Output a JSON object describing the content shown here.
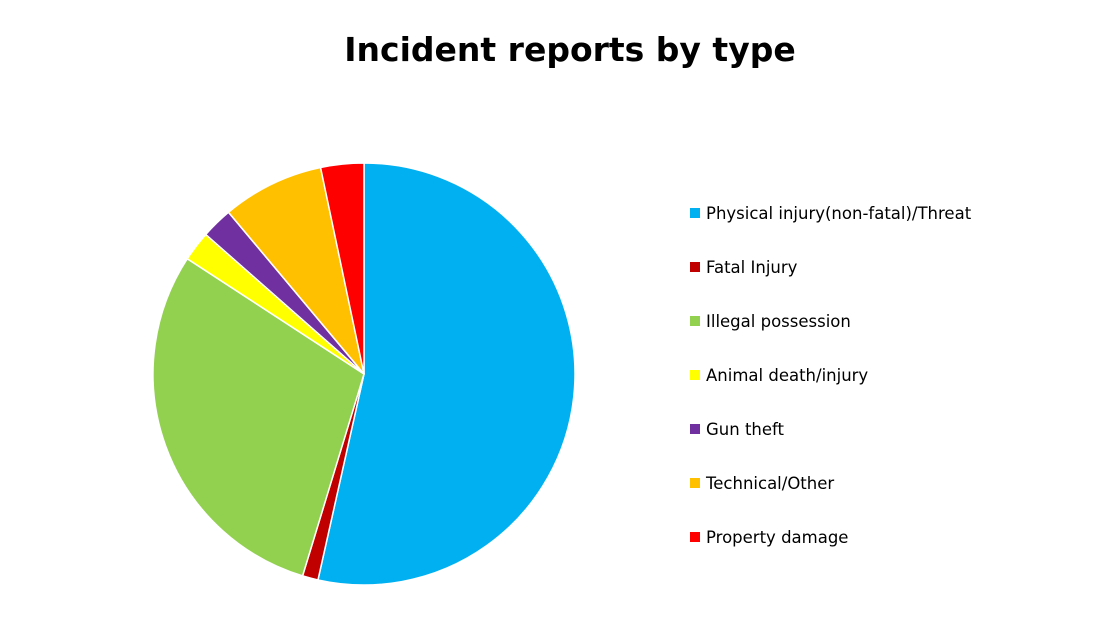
{
  "chart_data": {
    "type": "pie",
    "title": "Incident reports by type",
    "legend_position": "right",
    "start_angle": "12 o'clock",
    "direction": "clockwise",
    "slices": [
      {
        "name": "Physical injury(non-fatal)/Threat",
        "value": 53.5,
        "color": "#00B0F0"
      },
      {
        "name": "Fatal Injury",
        "value": 1.2,
        "color": "#C00000"
      },
      {
        "name": "Illegal possession",
        "value": 29.5,
        "color": "#92D050"
      },
      {
        "name": "Animal death/injury",
        "value": 2.3,
        "color": "#FFFF00"
      },
      {
        "name": "Gun theft",
        "value": 2.4,
        "color": "#7030A0"
      },
      {
        "name": "Technical/Other",
        "value": 7.8,
        "color": "#FFC000"
      },
      {
        "name": "Property damage",
        "value": 3.3,
        "color": "#FF0000"
      }
    ]
  }
}
